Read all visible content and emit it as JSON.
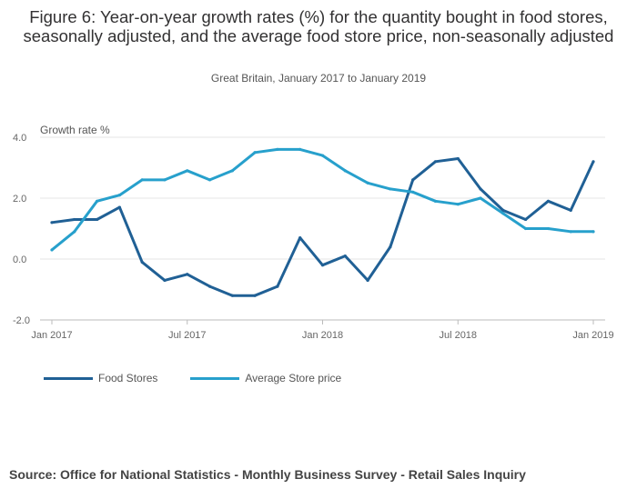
{
  "title": "Figure 6: Year-on-year growth rates (%) for the quantity bought in food stores, seasonally adjusted, and the average food store price, non-seasonally adjusted",
  "subtitle": "Great Britain, January 2017 to January 2019",
  "source": "Source: Office for National Statistics - Monthly Business Survey - Retail Sales Inquiry",
  "chart_data": {
    "type": "line",
    "title": "Figure 6: Year-on-year growth rates (%) for the quantity bought in food stores, seasonally adjusted, and the average food store price, non-seasonally adjusted",
    "ylabel": "Growth rate %",
    "xlabel": "",
    "ylim": [
      -2.0,
      4.0
    ],
    "yticks": [
      "4.0",
      "2.0",
      "0.0",
      "-2.0"
    ],
    "ytick_values": [
      4.0,
      2.0,
      0.0,
      -2.0
    ],
    "xticks": [
      "Jan 2017",
      "Jul 2017",
      "Jan 2018",
      "Jul 2018",
      "Jan 2019"
    ],
    "xtick_index": [
      0,
      6,
      12,
      18,
      24
    ],
    "x": [
      "Jan 2017",
      "Feb 2017",
      "Mar 2017",
      "Apr 2017",
      "May 2017",
      "Jun 2017",
      "Jul 2017",
      "Aug 2017",
      "Sep 2017",
      "Oct 2017",
      "Nov 2017",
      "Dec 2017",
      "Jan 2018",
      "Feb 2018",
      "Mar 2018",
      "Apr 2018",
      "May 2018",
      "Jun 2018",
      "Jul 2018",
      "Aug 2018",
      "Sep 2018",
      "Oct 2018",
      "Nov 2018",
      "Dec 2018",
      "Jan 2019"
    ],
    "series": [
      {
        "name": "Food Stores",
        "color": "#206095",
        "values": [
          1.2,
          1.3,
          1.3,
          1.7,
          -0.1,
          -0.7,
          -0.5,
          -0.9,
          -1.2,
          -1.2,
          -0.9,
          0.7,
          -0.2,
          0.1,
          -0.7,
          0.4,
          2.6,
          3.2,
          3.3,
          2.3,
          1.6,
          1.3,
          1.9,
          1.6,
          3.2
        ]
      },
      {
        "name": "Average Store price",
        "color": "#27a0cc",
        "values": [
          0.3,
          0.9,
          1.9,
          2.1,
          2.6,
          2.6,
          2.9,
          2.6,
          2.9,
          3.5,
          3.6,
          3.6,
          3.4,
          2.9,
          2.5,
          2.3,
          2.2,
          1.9,
          1.8,
          2.0,
          1.5,
          1.0,
          1.0,
          0.9,
          0.9
        ]
      }
    ],
    "legend_position": "bottom-left",
    "grid": true
  }
}
